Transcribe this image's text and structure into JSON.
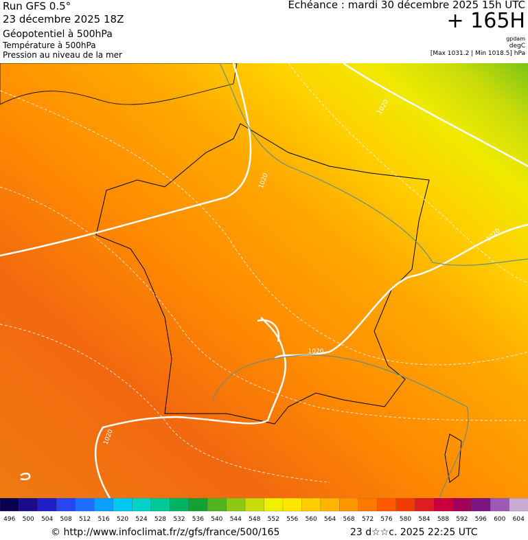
{
  "header": {
    "run": "Run GFS 0.5°",
    "run_date": "23 décembre 2025 18Z",
    "layer1": "Géopotentiel à 500hPa",
    "layer2": "Température à 500hPa",
    "layer3": "Pression au niveau de la mer",
    "valid": "Echéance : mardi 30 décembre 2025 15h UTC",
    "lead": "+ 165H",
    "unit1": "gpdam",
    "unit2": "degC",
    "pressure_range": "[Max 1031.2 | Min 1018.5] hPa"
  },
  "map": {
    "contour_labels": [
      "1020",
      "1020",
      "1020",
      "1020",
      "1020"
    ]
  },
  "colorbar": {
    "labels": [
      496,
      500,
      504,
      508,
      512,
      516,
      520,
      524,
      528,
      532,
      536,
      540,
      544,
      548,
      552,
      556,
      560,
      564,
      568,
      572,
      576,
      580,
      584,
      588,
      592,
      596,
      600,
      604
    ],
    "colors": [
      "#0a0050",
      "#1a0a8c",
      "#1e1ec8",
      "#2846f0",
      "#1e6eff",
      "#0aa0ff",
      "#00c8f0",
      "#00d2c8",
      "#00c896",
      "#00b464",
      "#14a032",
      "#50b41e",
      "#8cc814",
      "#c8dc0a",
      "#f0f000",
      "#ffe600",
      "#ffcd00",
      "#ffb400",
      "#ff9600",
      "#ff7800",
      "#ff5a00",
      "#f03c00",
      "#dc1e1e",
      "#c8003c",
      "#a0005a",
      "#7a1480",
      "#9c5ab4",
      "#c8aad2"
    ]
  },
  "footer": {
    "url": "© http://www.infoclimat.fr/z/gfs/france/500/165",
    "timestamp": "23 d☆☆c. 2025 22:25 UTC"
  }
}
